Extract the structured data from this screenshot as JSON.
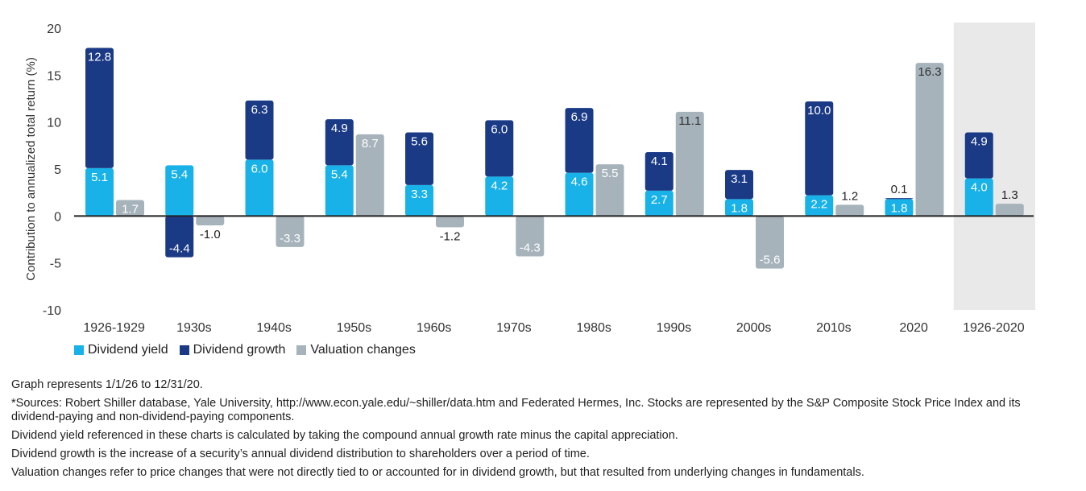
{
  "chart_data": {
    "type": "bar",
    "stacked": true,
    "ylabel": "Contribution to annualized total return (%)",
    "ylim": [
      -10,
      20
    ],
    "yticks": [
      20,
      15,
      10,
      5,
      0,
      -5,
      -10
    ],
    "grid": false,
    "legend_position": "bottom-left",
    "categories": [
      "1926-1929",
      "1930s",
      "1940s",
      "1950s",
      "1960s",
      "1970s",
      "1980s",
      "1990s",
      "2000s",
      "2010s",
      "2020",
      "1926-2020"
    ],
    "highlighted_category": "1926-2020",
    "series": [
      {
        "name": "Dividend yield",
        "color": "#19b2e8",
        "stack": "dividend",
        "values": [
          5.1,
          5.4,
          6.0,
          5.4,
          3.3,
          4.2,
          4.6,
          2.7,
          1.8,
          2.2,
          1.8,
          4.0
        ]
      },
      {
        "name": "Dividend growth",
        "color": "#1b3a86",
        "stack": "dividend",
        "values": [
          12.8,
          -4.4,
          6.3,
          4.9,
          5.6,
          6.0,
          6.9,
          4.1,
          3.1,
          10.0,
          0.1,
          4.9
        ]
      },
      {
        "name": "Valuation changes",
        "color": "#a6b3bb",
        "stack": "valuation",
        "values": [
          1.7,
          -1.0,
          -3.3,
          8.7,
          -1.2,
          -4.3,
          5.5,
          11.1,
          -5.6,
          1.2,
          16.3,
          1.3
        ]
      }
    ]
  },
  "legend": {
    "items": [
      {
        "label": "Dividend yield",
        "color": "#19b2e8"
      },
      {
        "label": "Dividend growth",
        "color": "#1b3a86"
      },
      {
        "label": "Valuation changes",
        "color": "#a6b3bb"
      }
    ]
  },
  "notes": {
    "line1": "Graph represents 1/1/26 to 12/31/20.",
    "line2": "*Sources: Robert Shiller database, Yale University, http://www.econ.yale.edu/~shiller/data.htm and Federated Hermes, Inc. Stocks are represented by the S&P Composite Stock Price Index and its dividend-paying and non-dividend-paying components.",
    "line3": "Dividend yield referenced in these charts is calculated by taking the compound annual growth rate minus the capital appreciation.",
    "line4": "Dividend growth is the increase of a security’s annual dividend distribution to shareholders over a period of time.",
    "line5": "Valuation changes refer to price changes that were not directly tied to or accounted for in dividend growth, but that resulted from underlying changes in fundamentals."
  }
}
